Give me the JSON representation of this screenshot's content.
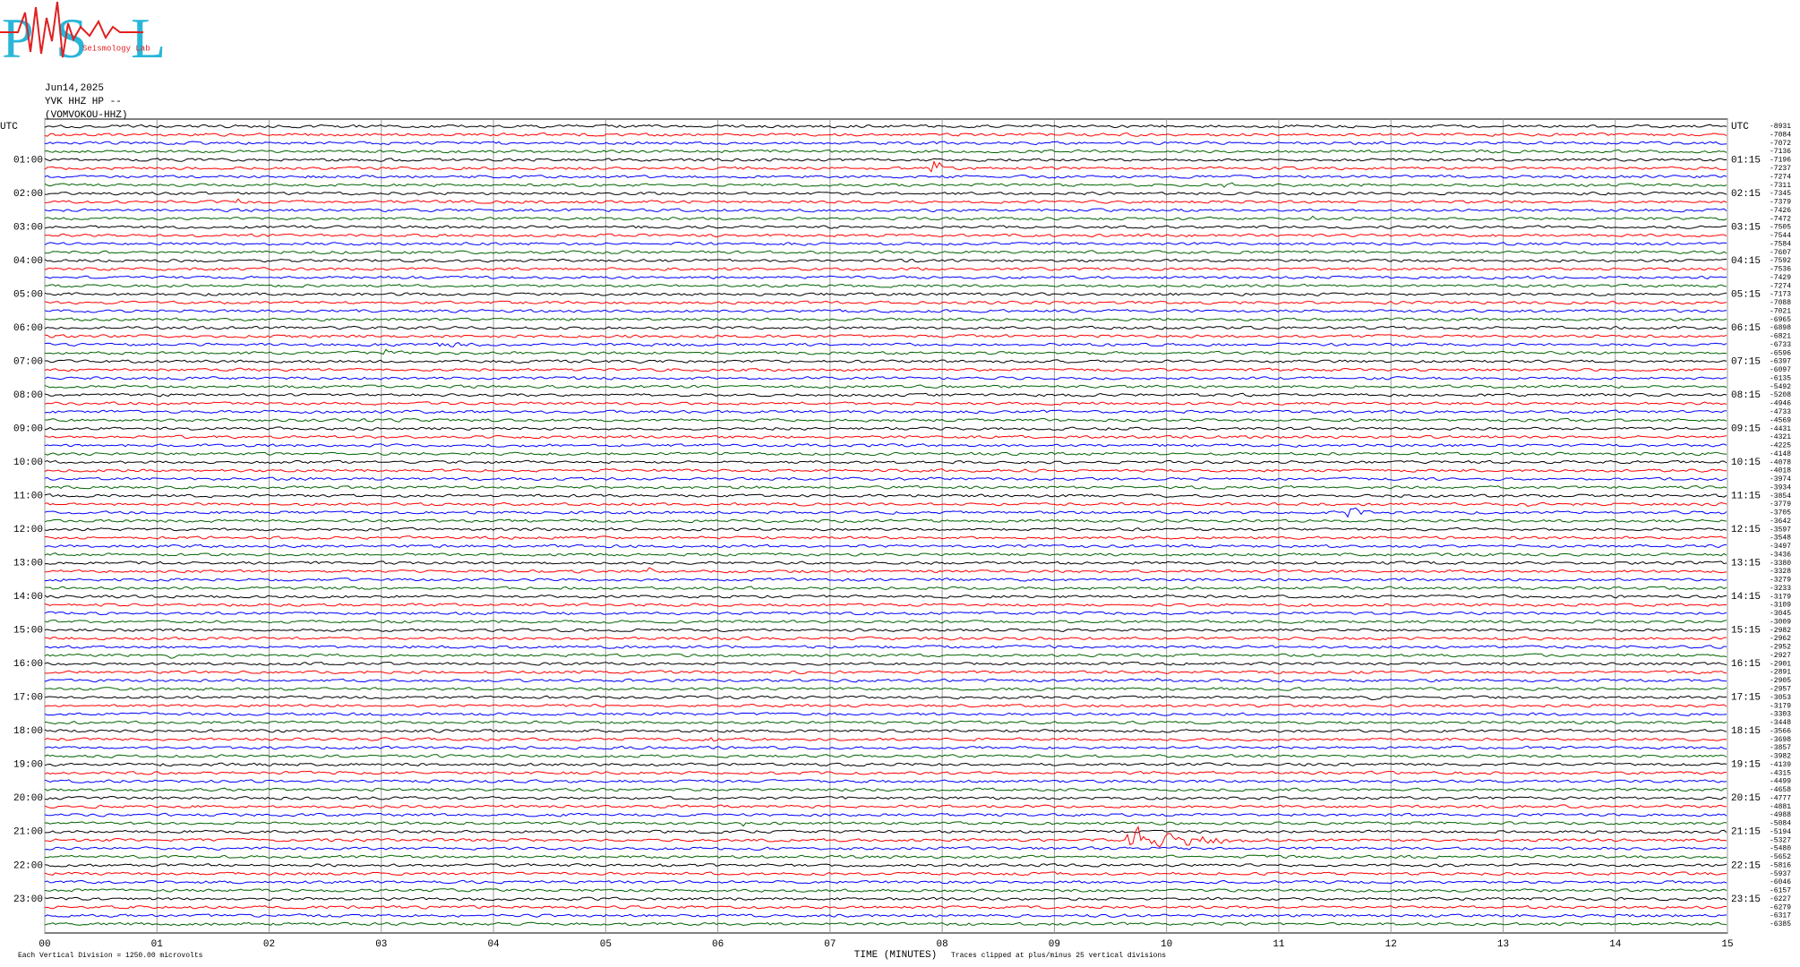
{
  "logo": {
    "letters": [
      "P",
      "S",
      "L"
    ],
    "text": "Seismology Lab"
  },
  "header": {
    "date": "Jun14,2025",
    "station": "YVK HHZ HP --",
    "site": "(VOMVOKOU-HHZ)"
  },
  "left_labels": [
    "UTC",
    "01:00",
    "02:00",
    "03:00",
    "04:00",
    "05:00",
    "06:00",
    "07:00",
    "08:00",
    "09:00",
    "10:00",
    "11:00",
    "12:00",
    "13:00",
    "14:00",
    "15:00",
    "16:00",
    "17:00",
    "18:00",
    "19:00",
    "20:00",
    "21:00",
    "22:00",
    "23:00"
  ],
  "right_labels": [
    "UTC",
    "01:15",
    "02:15",
    "03:15",
    "04:15",
    "05:15",
    "06:15",
    "07:15",
    "08:15",
    "09:15",
    "10:15",
    "11:15",
    "12:15",
    "13:15",
    "14:15",
    "15:15",
    "16:15",
    "17:15",
    "18:15",
    "19:15",
    "20:15",
    "21:15",
    "22:15",
    "23:15"
  ],
  "trace_offsets": [
    -8931,
    -7084,
    -7072,
    -7136,
    -7196,
    -7237,
    -7274,
    -7311,
    -7345,
    -7379,
    -7426,
    -7472,
    -7505,
    -7544,
    -7584,
    -7607,
    -7592,
    -7536,
    -7429,
    -7274,
    -7173,
    -7088,
    -7021,
    -6965,
    -6898,
    -6821,
    -6733,
    -6596,
    -6397,
    -6097,
    -6135,
    -5492,
    -5208,
    -4946,
    -4733,
    -4569,
    -4431,
    -4321,
    -4225,
    -4148,
    -4078,
    -4018,
    -3974,
    -3934,
    -3854,
    -3779,
    -3705,
    -3642,
    -3597,
    -3548,
    -3497,
    -3436,
    -3380,
    -3328,
    -3279,
    -3233,
    -3179,
    -3109,
    -3045,
    -3009,
    -2982,
    -2962,
    -2952,
    -2927,
    -2901,
    -2891,
    -2905,
    -2957,
    -3053,
    -3179,
    -3303,
    -3448,
    -3566,
    -3698,
    -3857,
    -3982,
    -4139,
    -4315,
    -4499,
    -4658,
    -4777,
    -4881,
    -4988,
    -5084,
    -5194,
    -5327,
    -5480,
    -5652,
    -5816,
    -5937,
    -6046,
    -6157,
    -6227,
    -6279,
    -6317,
    -6385
  ],
  "x_axis": {
    "ticks": [
      "00",
      "01",
      "02",
      "03",
      "04",
      "05",
      "06",
      "07",
      "08",
      "09",
      "10",
      "11",
      "12",
      "13",
      "14",
      "15"
    ],
    "title": "TIME (MINUTES)"
  },
  "notes": {
    "scale": "Each Vertical Division = 1250.00 microvolts",
    "clip": "Traces clipped at plus/minus 25 vertical divisions"
  }
}
